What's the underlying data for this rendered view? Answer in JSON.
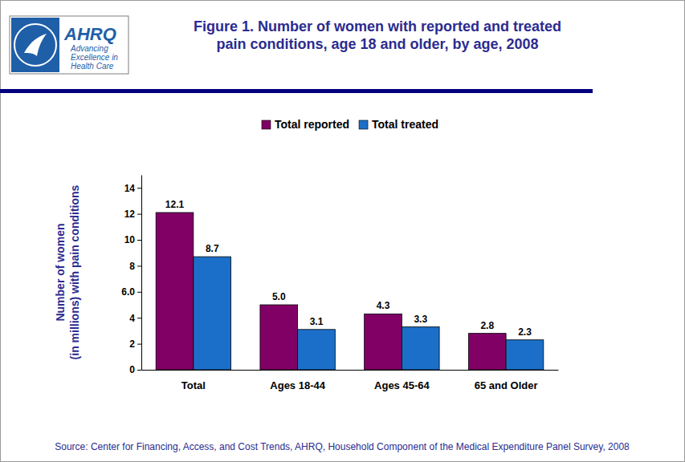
{
  "logo": {
    "name": "AHRQ",
    "tagline": [
      "Advancing",
      "Excellence in",
      "Health Care"
    ]
  },
  "chart_data": {
    "type": "bar",
    "title": "Figure 1. Number of women with reported and treated pain conditions, age 18 and older, by age, 2008",
    "ylabel": [
      "Number of women",
      "(in millions) with pain conditions"
    ],
    "source": "Source: Center for Financing, Access, and Cost Trends, AHRQ, Household Component of the Medical Expenditure Panel Survey,  2008",
    "categories": [
      "Total",
      "Ages 18-44",
      "Ages 45-64",
      "65 and Older"
    ],
    "series": [
      {
        "name": "Total reported",
        "color": "#800066",
        "values": [
          12.1,
          5.0,
          4.3,
          2.8
        ],
        "value_labels": [
          "12.1",
          "5.0",
          "4.3",
          "2.8"
        ]
      },
      {
        "name": "Total treated",
        "color": "#1c6fc8",
        "values": [
          8.7,
          3.1,
          3.3,
          2.3
        ]
      }
    ],
    "ylim": [
      0,
      15
    ],
    "yticks": [
      0,
      2,
      4,
      {
        "value": 6,
        "label": "6.0"
      },
      8,
      10,
      12,
      14
    ],
    "grid": false,
    "legend": "top",
    "data_labels": true
  }
}
